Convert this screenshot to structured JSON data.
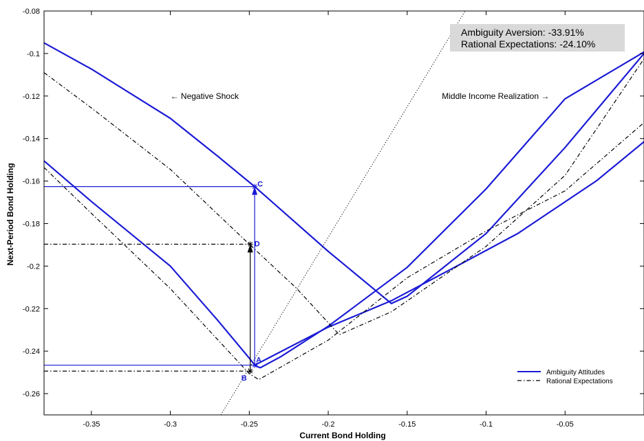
{
  "chart_data": {
    "type": "line",
    "xlabel": "Current Bond Holding",
    "ylabel": "Next-Period Bond Holding",
    "xlim": [
      -0.38,
      0.0
    ],
    "ylim": [
      -0.27,
      -0.08
    ],
    "x_ticks": [
      -0.35,
      -0.3,
      -0.25,
      -0.2,
      -0.15,
      -0.1,
      -0.05
    ],
    "x_tick_labels": [
      "-0.35",
      "-0.3",
      "-0.25",
      "-0.2",
      "-0.15",
      "-0.1",
      "-0.05"
    ],
    "y_ticks": [
      -0.08,
      -0.1,
      -0.12,
      -0.14,
      -0.16,
      -0.18,
      -0.2,
      -0.22,
      -0.24,
      -0.26
    ],
    "y_tick_labels": [
      "-0.08",
      "-0.1",
      "-0.12",
      "-0.14",
      "-0.16",
      "-0.18",
      "-0.2",
      "-0.22",
      "-0.24",
      "-0.26"
    ],
    "grid": false,
    "legend_position": "bottom-right",
    "colors": {
      "ambiguity": "#1a1ad6",
      "rational": "#000000",
      "box": "#d9d9d9"
    },
    "series": [
      {
        "name": "Ambiguity Attitudes",
        "style": "solid",
        "group": "ambiguity",
        "x": [
          -0.38,
          -0.35,
          -0.3,
          -0.27,
          -0.2466,
          -0.2,
          -0.16,
          -0.15,
          -0.1,
          -0.05,
          0.0
        ],
        "y": [
          -0.095,
          -0.1073,
          -0.1305,
          -0.1483,
          -0.1626,
          -0.1931,
          -0.2176,
          -0.2142,
          -0.1847,
          -0.1442,
          -0.1
        ]
      },
      {
        "name": "",
        "style": "solid",
        "group": "ambiguity",
        "x": [
          -0.38,
          -0.35,
          -0.3,
          -0.27,
          -0.25,
          -0.246,
          -0.243,
          -0.23,
          -0.2,
          -0.15,
          -0.1,
          -0.05,
          0.0
        ],
        "y": [
          -0.1505,
          -0.1696,
          -0.2,
          -0.2255,
          -0.2433,
          -0.247,
          -0.2478,
          -0.2426,
          -0.2283,
          -0.2006,
          -0.1637,
          -0.1213,
          -0.0993
        ]
      },
      {
        "name": "",
        "style": "solid",
        "group": "ambiguity",
        "x": [
          -0.2466,
          -0.2,
          -0.16,
          -0.12,
          -0.08,
          -0.03,
          0.0
        ],
        "y": [
          -0.2466,
          -0.2287,
          -0.2163,
          -0.2006,
          -0.1847,
          -0.1598,
          -0.1415
        ]
      },
      {
        "name": "Rational Expectations",
        "style": "dashdot",
        "group": "rational",
        "x": [
          -0.38,
          -0.35,
          -0.3,
          -0.25,
          -0.22,
          -0.193,
          -0.16,
          -0.1,
          -0.05,
          0.0
        ],
        "y": [
          -0.109,
          -0.1256,
          -0.1545,
          -0.1897,
          -0.2105,
          -0.2323,
          -0.2215,
          -0.1907,
          -0.1573,
          -0.1025
        ]
      },
      {
        "name": "",
        "style": "dashdot",
        "group": "rational",
        "x": [
          -0.38,
          -0.35,
          -0.3,
          -0.25,
          -0.244,
          -0.2,
          -0.15,
          -0.1,
          -0.05,
          0.0
        ],
        "y": [
          -0.1536,
          -0.1752,
          -0.2106,
          -0.2506,
          -0.2534,
          -0.2348,
          -0.2055,
          -0.1835,
          -0.1646,
          -0.1325
        ]
      },
      {
        "name": "",
        "style": "dotted",
        "group": "rational",
        "x": [
          -0.268,
          -0.1133
        ],
        "y": [
          -0.27,
          -0.08
        ]
      }
    ],
    "guides": [
      {
        "group": "ambiguity",
        "style": "solid",
        "x": [
          -0.38,
          -0.2466
        ],
        "y": [
          -0.1626,
          -0.1626
        ]
      },
      {
        "group": "ambiguity",
        "style": "solid",
        "x": [
          -0.38,
          -0.2466
        ],
        "y": [
          -0.2466,
          -0.2466
        ]
      },
      {
        "group": "ambiguity",
        "style": "solid",
        "x": [
          -0.2466,
          -0.2466
        ],
        "y": [
          -0.2466,
          -0.1626
        ]
      },
      {
        "group": "rational",
        "style": "dashdot",
        "x": [
          -0.38,
          -0.2494
        ],
        "y": [
          -0.1897,
          -0.1897
        ]
      },
      {
        "group": "rational",
        "style": "dashdot",
        "x": [
          -0.38,
          -0.2494
        ],
        "y": [
          -0.2494,
          -0.2494
        ]
      },
      {
        "group": "rational",
        "style": "solid",
        "x": [
          -0.2494,
          -0.2494
        ],
        "y": [
          -0.2494,
          -0.1897
        ]
      }
    ],
    "points": [
      {
        "label": "A",
        "x": -0.2466,
        "y": -0.2466,
        "group": "ambiguity",
        "dx": 2,
        "dy": -4
      },
      {
        "label": "B",
        "x": -0.2494,
        "y": -0.2494,
        "group": "rational",
        "dx": -13,
        "dy": 14
      },
      {
        "label": "C",
        "x": -0.2466,
        "y": -0.1626,
        "group": "ambiguity",
        "dx": 4,
        "dy": 0
      },
      {
        "label": "D",
        "x": -0.2494,
        "y": -0.1897,
        "group": "rational",
        "dx": 6,
        "dy": 3
      }
    ],
    "annotations": [
      {
        "id": "negative-shock",
        "text": "← Negative Shock",
        "x": -0.3,
        "y": -0.12
      },
      {
        "id": "middle-income",
        "text": "Middle Income Realization →",
        "x": -0.128,
        "y": -0.12
      }
    ],
    "stats_box": [
      "Ambiguity Aversion: -33.91%",
      "Rational Expectations:  -24.10%"
    ],
    "legend": [
      {
        "label": "Ambiguity Attitudes",
        "style": "solid",
        "group": "ambiguity"
      },
      {
        "label": "Rational Expectations",
        "style": "dashdot",
        "group": "rational"
      }
    ]
  }
}
